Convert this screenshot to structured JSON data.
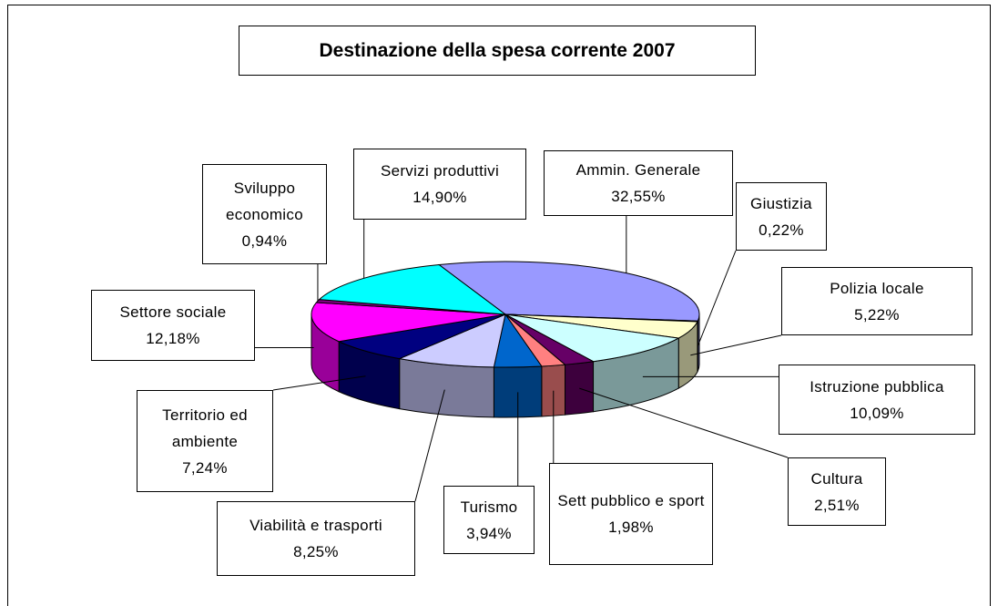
{
  "chart_data": {
    "type": "pie",
    "title": "Destinazione della spesa corrente 2007",
    "categories": [
      "Ammin. Generale",
      "Giustizia",
      "Polizia locale",
      "Istruzione pubblica",
      "Cultura",
      "Sett pubblico e sport",
      "Turismo",
      "Viabilità e trasporti",
      "Territorio ed ambiente",
      "Settore sociale",
      "Sviluppo economico",
      "Servizi produttivi"
    ],
    "values": [
      32.55,
      0.22,
      5.22,
      10.09,
      2.51,
      1.98,
      3.94,
      8.25,
      7.24,
      12.18,
      0.94,
      14.9
    ],
    "value_labels": [
      "32,55%",
      "0,22%",
      "5,22%",
      "10,09%",
      "2,51%",
      "1,98%",
      "3,94%",
      "8,25%",
      "7,24%",
      "12,18%",
      "0,94%",
      "14,90%"
    ],
    "colors": [
      "#9999ff",
      "#993366",
      "#ffffcc",
      "#ccffff",
      "#660066",
      "#ff8080",
      "#0066cc",
      "#ccccff",
      "#000080",
      "#ff00ff",
      "#800080",
      "#00ffff"
    ]
  }
}
